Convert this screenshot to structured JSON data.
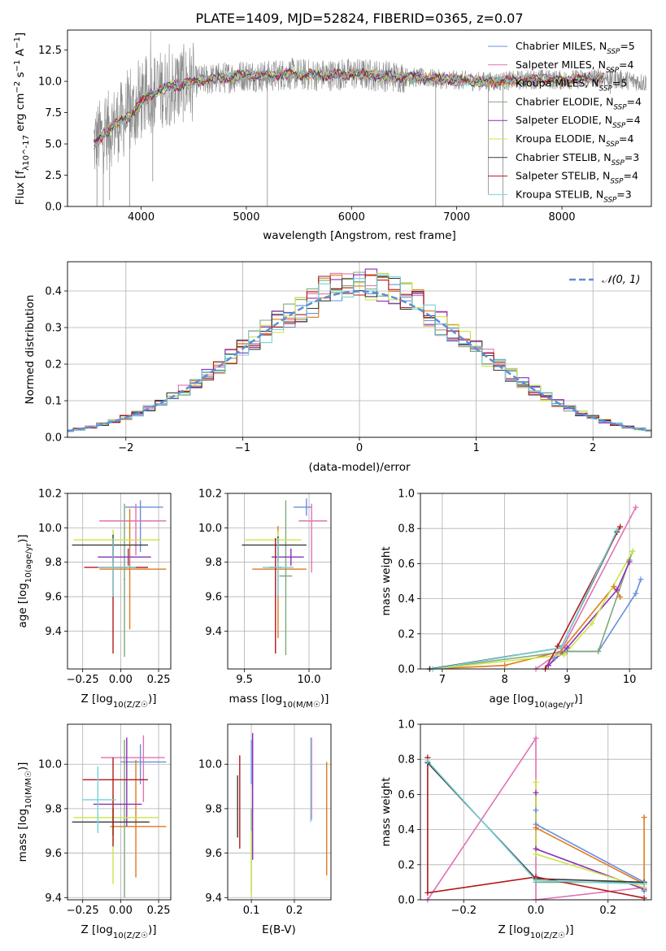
{
  "figure_title": "PLATE=1409, MJD=52824, FIBERID=0365, z=0.07",
  "colors": {
    "Chabrier MILES": "#6a8fdc",
    "Salpeter MILES": "#e072b4",
    "Kroupa MILES": "#e07a1e",
    "Chabrier ELODIE": "#7fa87a",
    "Salpeter ELODIE": "#8e2fb8",
    "Kroupa ELODIE": "#c8e64a",
    "Chabrier STELIB": "#3b3b3b",
    "Salpeter STELIB": "#b21a1a",
    "Kroupa STELIB": "#76d1d6",
    "data": "#8a8a8a",
    "normal": "#5b8fd6"
  },
  "chart_data": [
    {
      "id": "spectrum",
      "type": "line",
      "xlabel": "wavelength [Angstrom, rest frame]",
      "ylabel": "Flux [f_λ 10^-17 erg cm^-2 s^-1 A^-1]",
      "xlim": [
        3300,
        8850
      ],
      "ylim": [
        0,
        14.1
      ],
      "xticks": [
        4000,
        5000,
        6000,
        7000,
        8000
      ],
      "xtick_labels": [
        "4000",
        "5000",
        "6000",
        "7000",
        "8000"
      ],
      "yticks": [
        0.0,
        2.5,
        5.0,
        7.5,
        10.0,
        12.5
      ],
      "ytick_labels": [
        "0.0",
        "2.5",
        "5.0",
        "7.5",
        "10.0",
        "12.5"
      ],
      "legend_position": "right",
      "legend": [
        {
          "model": "Chabrier MILES",
          "n": "5"
        },
        {
          "model": "Salpeter MILES",
          "n": "4"
        },
        {
          "model": "Kroupa MILES",
          "n": "5"
        },
        {
          "model": "Chabrier ELODIE",
          "n": "4"
        },
        {
          "model": "Salpeter ELODIE",
          "n": "4"
        },
        {
          "model": "Kroupa ELODIE",
          "n": "4"
        },
        {
          "model": "Chabrier STELIB",
          "n": "3"
        },
        {
          "model": "Salpeter STELIB",
          "n": "4"
        },
        {
          "model": "Kroupa STELIB",
          "n": "3"
        }
      ],
      "continuum": {
        "x": [
          3550,
          3700,
          3800,
          3900,
          4000,
          4100,
          4200,
          4400,
          4600,
          4800,
          5000,
          5200,
          5400,
          5600,
          5800,
          6000,
          6200,
          6400,
          6600,
          6800,
          7000,
          7200,
          7400,
          7600,
          7800,
          8000,
          8200,
          8400,
          8600,
          8800
        ],
        "y": [
          5.0,
          6.2,
          6.8,
          7.3,
          8.3,
          9.0,
          9.4,
          9.8,
          10.1,
          10.3,
          10.5,
          10.4,
          10.6,
          10.5,
          10.5,
          10.6,
          10.5,
          10.4,
          10.3,
          10.2,
          10.1,
          10.0,
          10.0,
          10.1,
          10.2,
          10.1,
          10.2,
          10.3,
          10.1,
          9.9
        ]
      }
    },
    {
      "id": "residuals",
      "type": "histogram",
      "xlabel": "(data-model)/error",
      "ylabel": "Normed distribution",
      "xlim": [
        -2.5,
        2.5
      ],
      "ylim": [
        0,
        0.48
      ],
      "xticks": [
        -2,
        -1,
        0,
        1,
        2
      ],
      "xtick_labels": [
        "−2",
        "−1",
        "0",
        "1",
        "2"
      ],
      "yticks": [
        0.0,
        0.1,
        0.2,
        0.3,
        0.4
      ],
      "ytick_labels": [
        "0.0",
        "0.1",
        "0.2",
        "0.3",
        "0.4"
      ],
      "grid": true,
      "legend_label": "𝒩(0, 1)",
      "bin_width": 0.1
    },
    {
      "id": "age-vs-Z",
      "type": "errorbar",
      "xlabel": "Z [log10(Z/Z☉)]",
      "ylabel": "age  [log10(age/yr)]",
      "xlim": [
        -0.35,
        0.33
      ],
      "ylim": [
        9.18,
        10.2
      ],
      "xticks": [
        -0.25,
        0.0,
        0.25
      ],
      "xtick_labels": [
        "−0.25",
        "0.00",
        "0.25"
      ],
      "yticks": [
        9.4,
        9.6,
        9.8,
        10.0,
        10.2
      ],
      "ytick_labels": [
        "9.4",
        "9.6",
        "9.8",
        "10.0",
        "10.2"
      ],
      "grid": true,
      "points": [
        {
          "model": "Chabrier MILES",
          "x": 0.13,
          "xerr": [
            0.1,
            0.15
          ],
          "y": 10.12,
          "yerr": [
            0.26,
            0.04
          ]
        },
        {
          "model": "Salpeter MILES",
          "x": 0.1,
          "xerr": [
            0.24,
            0.2
          ],
          "y": 10.04,
          "yerr": [
            0.2,
            0.1
          ]
        },
        {
          "model": "Kroupa MILES",
          "x": 0.06,
          "xerr": [
            0.2,
            0.24
          ],
          "y": 9.76,
          "yerr": [
            0.35,
            0.35
          ]
        },
        {
          "model": "Chabrier ELODIE",
          "x": 0.025,
          "xerr": [
            0.005,
            0.005
          ],
          "y": 9.7,
          "yerr": [
            0.45,
            0.44
          ]
        },
        {
          "model": "Salpeter ELODIE",
          "x": 0.05,
          "xerr": [
            0.2,
            0.15
          ],
          "y": 9.83,
          "yerr": [
            0.05,
            0.05
          ]
        },
        {
          "model": "Kroupa ELODIE",
          "x": -0.05,
          "xerr": [
            0.26,
            0.31
          ],
          "y": 9.93,
          "yerr": [
            0.06,
            0.06
          ]
        },
        {
          "model": "Chabrier STELIB",
          "x": -0.05,
          "xerr": [
            0.27,
            0.23
          ],
          "y": 9.9,
          "yerr": [
            0.1,
            0.06
          ]
        },
        {
          "model": "Salpeter STELIB",
          "x": -0.05,
          "xerr": [
            0.19,
            0.23
          ],
          "y": 9.77,
          "yerr": [
            0.5,
            0.17
          ]
        },
        {
          "model": "Kroupa STELIB",
          "x": -0.05,
          "xerr": [
            0.1,
            0.15
          ],
          "y": 9.77,
          "yerr": [
            0.17,
            0.17
          ]
        }
      ]
    },
    {
      "id": "age-vs-mass",
      "type": "errorbar",
      "xlabel": "mass [log10(M/M☉)]",
      "ylim": [
        9.18,
        10.2
      ],
      "xlim": [
        9.37,
        10.17
      ],
      "xticks": [
        9.5,
        10.0
      ],
      "xtick_labels": [
        "9.5",
        "10.0"
      ],
      "yticks": [
        9.4,
        9.6,
        9.8,
        10.0,
        10.2
      ],
      "ytick_labels": [
        "9.4",
        "9.6",
        "9.8",
        "10.0",
        "10.2"
      ],
      "grid": true,
      "points": [
        {
          "model": "Chabrier MILES",
          "x": 9.98,
          "xerr": [
            0.1,
            0.04
          ],
          "y": 10.12,
          "yerr": [
            0.05,
            0.05
          ]
        },
        {
          "model": "Salpeter MILES",
          "x": 10.02,
          "xerr": [
            0.1,
            0.12
          ],
          "y": 10.04,
          "yerr": [
            0.3,
            0.1
          ]
        },
        {
          "model": "Kroupa MILES",
          "x": 9.76,
          "xerr": [
            0.2,
            0.22
          ],
          "y": 9.76,
          "yerr": [
            0.4,
            0.25
          ]
        },
        {
          "model": "Chabrier ELODIE",
          "x": 9.82,
          "xerr": [
            0.05,
            0.05
          ],
          "y": 9.72,
          "yerr": [
            0.46,
            0.44
          ]
        },
        {
          "model": "Salpeter ELODIE",
          "x": 9.86,
          "xerr": [
            0.15,
            0.1
          ],
          "y": 9.83,
          "yerr": [
            0.05,
            0.05
          ]
        },
        {
          "model": "Kroupa ELODIE",
          "x": 9.76,
          "xerr": [
            0.26,
            0.18
          ],
          "y": 9.93,
          "yerr": [
            0.1,
            0.05
          ]
        },
        {
          "model": "Chabrier STELIB",
          "x": 9.76,
          "xerr": [
            0.28,
            0.22
          ],
          "y": 9.9,
          "yerr": [
            0.1,
            0.05
          ]
        },
        {
          "model": "Salpeter STELIB",
          "x": 9.74,
          "xerr": [
            0.05,
            0.05
          ],
          "y": 9.77,
          "yerr": [
            0.5,
            0.17
          ]
        },
        {
          "model": "Kroupa STELIB",
          "x": 9.76,
          "xerr": [
            0.12,
            0.12
          ],
          "y": 9.77,
          "yerr": [
            0.17,
            0.17
          ]
        }
      ]
    },
    {
      "id": "weight-vs-age",
      "type": "line",
      "xlabel": "age  [log10(age/yr)]",
      "ylabel": "mass weight",
      "xlim": [
        6.65,
        10.35
      ],
      "ylim": [
        0,
        1
      ],
      "xticks": [
        7,
        8,
        9,
        10
      ],
      "xtick_labels": [
        "7",
        "8",
        "9",
        "10"
      ],
      "yticks": [
        0.0,
        0.2,
        0.4,
        0.6,
        0.8,
        1.0
      ],
      "ytick_labels": [
        "0.0",
        "0.2",
        "0.4",
        "0.6",
        "0.8",
        "1.0"
      ],
      "grid": true,
      "series": [
        {
          "model": "Chabrier MILES",
          "x": [
            8.7,
            8.8,
            9.0,
            9.5,
            10.1,
            10.18
          ],
          "y": [
            0.02,
            0.06,
            0.1,
            0.1,
            0.43,
            0.51
          ]
        },
        {
          "model": "Salpeter MILES",
          "x": [
            8.5,
            8.9,
            10.1
          ],
          "y": [
            0.0,
            0.1,
            0.92
          ]
        },
        {
          "model": "Kroupa MILES",
          "x": [
            6.8,
            8.0,
            8.9,
            9.75,
            9.85
          ],
          "y": [
            0.0,
            0.02,
            0.1,
            0.47,
            0.41
          ]
        },
        {
          "model": "Chabrier ELODIE",
          "x": [
            6.8,
            9.0,
            9.5,
            10.0,
            10.05
          ],
          "y": [
            0.0,
            0.1,
            0.1,
            0.62,
            0.67
          ]
        },
        {
          "model": "Salpeter ELODIE",
          "x": [
            8.7,
            9.0,
            9.8,
            10.0
          ],
          "y": [
            0.02,
            0.12,
            0.45,
            0.61
          ]
        },
        {
          "model": "Kroupa ELODIE",
          "x": [
            6.85,
            8.95,
            9.4,
            10.05
          ],
          "y": [
            0.0,
            0.08,
            0.26,
            0.67
          ]
        },
        {
          "model": "Chabrier STELIB",
          "x": [
            6.8,
            8.9,
            9.8
          ],
          "y": [
            0.0,
            0.12,
            0.78
          ]
        },
        {
          "model": "Salpeter STELIB",
          "x": [
            8.65,
            8.85,
            9.85
          ],
          "y": [
            0.0,
            0.13,
            0.81
          ]
        },
        {
          "model": "Kroupa STELIB",
          "x": [
            6.85,
            8.9,
            9.8
          ],
          "y": [
            0.0,
            0.12,
            0.79
          ]
        }
      ]
    },
    {
      "id": "mass-vs-Z",
      "type": "errorbar",
      "xlabel": "Z [log10(Z/Z☉)]",
      "ylabel": "mass [log10(M/M☉)]",
      "xlim": [
        -0.35,
        0.33
      ],
      "ylim": [
        9.39,
        10.18
      ],
      "xticks": [
        -0.25,
        0.0,
        0.25
      ],
      "xtick_labels": [
        "−0.25",
        "0.00",
        "0.25"
      ],
      "yticks": [
        9.4,
        9.6,
        9.8,
        10.0
      ],
      "ytick_labels": [
        "9.4",
        "9.6",
        "9.8",
        "10.0"
      ],
      "grid": true,
      "points": [
        {
          "model": "Chabrier MILES",
          "x": 0.13,
          "xerr": [
            0.13,
            0.17
          ],
          "y": 10.01,
          "yerr": [
            0.1,
            0.08
          ]
        },
        {
          "model": "Salpeter MILES",
          "x": 0.15,
          "xerr": [
            0.28,
            0.14
          ],
          "y": 10.03,
          "yerr": [
            0.2,
            0.1
          ]
        },
        {
          "model": "Kroupa MILES",
          "x": 0.1,
          "xerr": [
            0.17,
            0.2
          ],
          "y": 9.72,
          "yerr": [
            0.23,
            0.3
          ]
        },
        {
          "model": "Chabrier ELODIE",
          "x": 0.025,
          "xerr": [
            0.005,
            0.005
          ],
          "y": 9.75,
          "yerr": [
            0.35,
            0.36
          ]
        },
        {
          "model": "Salpeter ELODIE",
          "x": 0.04,
          "xerr": [
            0.22,
            0.1
          ],
          "y": 9.82,
          "yerr": [
            0.1,
            0.3
          ]
        },
        {
          "model": "Kroupa ELODIE",
          "x": -0.05,
          "xerr": [
            0.26,
            0.3
          ],
          "y": 9.76,
          "yerr": [
            0.3,
            0.1
          ]
        },
        {
          "model": "Chabrier STELIB",
          "x": -0.05,
          "xerr": [
            0.27,
            0.24
          ],
          "y": 9.74,
          "yerr": [
            0.06,
            0.06
          ]
        },
        {
          "model": "Salpeter STELIB",
          "x": -0.05,
          "xerr": [
            0.2,
            0.23
          ],
          "y": 9.93,
          "yerr": [
            0.3,
            0.1
          ]
        },
        {
          "model": "Kroupa STELIB",
          "x": -0.15,
          "xerr": [
            0.1,
            0.12
          ],
          "y": 9.84,
          "yerr": [
            0.15,
            0.15
          ]
        }
      ]
    },
    {
      "id": "mass-vs-EBV",
      "type": "errorbar",
      "xlabel": "E(B-V)",
      "xlim": [
        0.045,
        0.285
      ],
      "ylim": [
        9.39,
        10.18
      ],
      "xticks": [
        0.1,
        0.2
      ],
      "xtick_labels": [
        "0.1",
        "0.2"
      ],
      "yticks": [
        9.4,
        9.6,
        9.8,
        10.0
      ],
      "ytick_labels": [
        "9.4",
        "9.6",
        "9.8",
        "10.0"
      ],
      "grid": true,
      "points": [
        {
          "model": "Chabrier MILES",
          "x": 0.1,
          "y": 10.01,
          "yerr": [
            0.1,
            0.1
          ]
        },
        {
          "model": "Salpeter MILES",
          "x": 0.24,
          "y": 9.95,
          "yerr": [
            0.2,
            0.17
          ]
        },
        {
          "model": "Kroupa MILES",
          "x": 0.275,
          "y": 9.76,
          "yerr": [
            0.26,
            0.25
          ]
        },
        {
          "model": "Chabrier ELODIE",
          "x": 0.1,
          "y": 9.7,
          "yerr": [
            0.28,
            0.1
          ]
        },
        {
          "model": "Salpeter ELODIE",
          "x": 0.103,
          "y": 9.86,
          "yerr": [
            0.29,
            0.28
          ]
        },
        {
          "model": "Kroupa ELODIE",
          "x": 0.1,
          "y": 9.6,
          "yerr": [
            0.2,
            0.1
          ]
        },
        {
          "model": "Chabrier STELIB",
          "x": 0.068,
          "y": 9.81,
          "yerr": [
            0.14,
            0.14
          ]
        },
        {
          "model": "Salpeter STELIB",
          "x": 0.073,
          "y": 9.83,
          "yerr": [
            0.21,
            0.21
          ]
        },
        {
          "model": "Kroupa STELIB",
          "x": 0.238,
          "y": 9.93,
          "yerr": [
            0.19,
            0.19
          ]
        }
      ]
    },
    {
      "id": "weight-vs-Z",
      "type": "line",
      "xlabel": "Z [log10(Z/Z☉)]",
      "ylabel": "mass weight",
      "xlim": [
        -0.32,
        0.32
      ],
      "ylim": [
        0,
        1
      ],
      "xticks": [
        -0.2,
        0.0,
        0.2
      ],
      "xtick_labels": [
        "−0.2",
        "0.0",
        "0.2"
      ],
      "yticks": [
        0.0,
        0.2,
        0.4,
        0.6,
        0.8,
        1.0
      ],
      "ytick_labels": [
        "0.0",
        "0.2",
        "0.4",
        "0.6",
        "0.8",
        "1.0"
      ],
      "grid": true,
      "series": [
        {
          "model": "Chabrier MILES",
          "x": [
            0.0,
            0.0,
            0.3,
            0.3
          ],
          "y": [
            0.51,
            0.43,
            0.1,
            0.05
          ]
        },
        {
          "model": "Salpeter MILES",
          "x": [
            -0.3,
            0.0,
            0.0,
            0.3
          ],
          "y": [
            0.0,
            0.92,
            0.0,
            0.07
          ]
        },
        {
          "model": "Kroupa MILES",
          "x": [
            0.0,
            0.3,
            0.3,
            0.3
          ],
          "y": [
            0.41,
            0.09,
            0.1,
            0.47
          ]
        },
        {
          "model": "Chabrier ELODIE",
          "x": [
            0.0,
            0.3
          ],
          "y": [
            0.1,
            0.1
          ]
        },
        {
          "model": "Salpeter ELODIE",
          "x": [
            0.0,
            0.0,
            0.3
          ],
          "y": [
            0.61,
            0.29,
            0.06
          ]
        },
        {
          "model": "Kroupa ELODIE",
          "x": [
            0.0,
            0.0,
            0.3
          ],
          "y": [
            0.67,
            0.26,
            0.07
          ]
        },
        {
          "model": "Chabrier STELIB",
          "x": [
            -0.3,
            0.0,
            0.3
          ],
          "y": [
            0.78,
            0.12,
            0.1
          ]
        },
        {
          "model": "Salpeter STELIB",
          "x": [
            -0.3,
            -0.3,
            0.0,
            0.3
          ],
          "y": [
            0.81,
            0.04,
            0.13,
            0.01
          ]
        },
        {
          "model": "Kroupa STELIB",
          "x": [
            -0.3,
            0.0,
            0.3
          ],
          "y": [
            0.79,
            0.11,
            0.09
          ]
        }
      ]
    }
  ]
}
